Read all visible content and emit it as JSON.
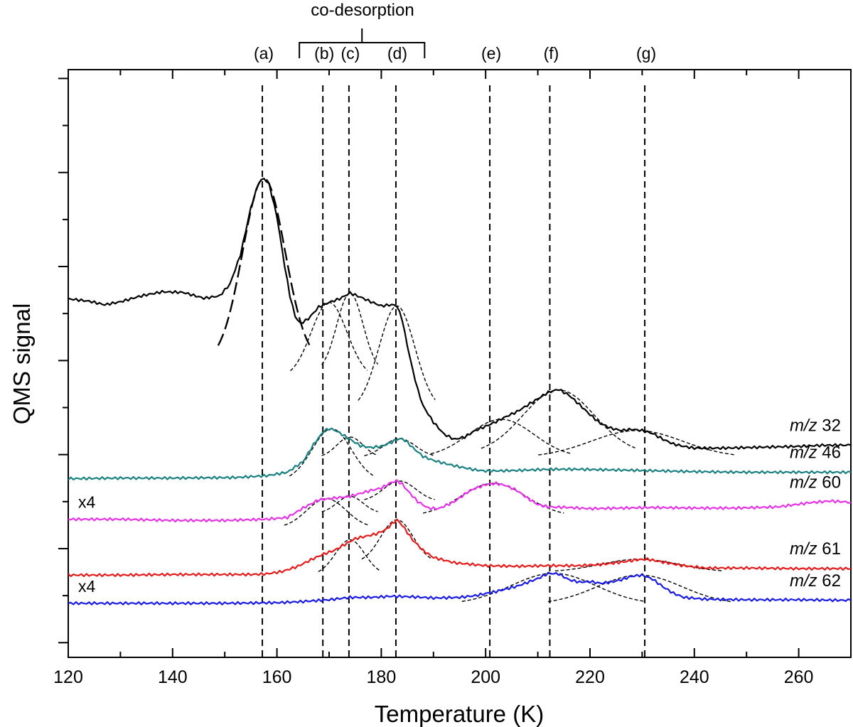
{
  "chart_data": {
    "type": "line",
    "xlabel": "Temperature (K)",
    "ylabel": "QMS signal",
    "xlim": [
      120,
      270
    ],
    "x_ticks": [
      120,
      140,
      160,
      180,
      200,
      220,
      240,
      260
    ],
    "x_tick_labels": [
      "120",
      "140",
      "160",
      "180",
      "200",
      "220",
      "240",
      "260"
    ],
    "y_units": "arbitrary (offset traces)",
    "ylim": [
      0,
      100
    ],
    "peak_markers": [
      {
        "label": "(a)",
        "T": 157.2
      },
      {
        "label": "(b)",
        "T": 168.8
      },
      {
        "label": "(c)",
        "T": 173.8
      },
      {
        "label": "(d)",
        "T": 182.8
      },
      {
        "label": "(e)",
        "T": 200.8
      },
      {
        "label": "(f)",
        "T": 212.3
      },
      {
        "label": "(g)",
        "T": 230.5
      }
    ],
    "codesorption": {
      "label": "co-desorption",
      "from": 164.3,
      "to": 188.3
    },
    "series": [
      {
        "name": "m/z 32",
        "label_italic": "m/z",
        "label_num": "32",
        "multiplier": "",
        "color": "#000000",
        "points": [
          [
            120,
            61
          ],
          [
            124,
            60.6
          ],
          [
            127,
            60
          ],
          [
            130,
            60.5
          ],
          [
            134,
            61.5
          ],
          [
            138,
            62.2
          ],
          [
            142,
            62.1
          ],
          [
            146,
            61.1
          ],
          [
            149,
            61.5
          ],
          [
            151,
            63.5
          ],
          [
            153,
            68.5
          ],
          [
            155,
            76.5
          ],
          [
            156.5,
            80.8
          ],
          [
            157.5,
            81.5
          ],
          [
            158.5,
            80.5
          ],
          [
            160,
            75
          ],
          [
            161.5,
            66.5
          ],
          [
            162.5,
            61.5
          ],
          [
            163.5,
            58
          ],
          [
            164.5,
            56.8
          ],
          [
            166,
            57.6
          ],
          [
            168,
            59.6
          ],
          [
            170,
            60.4
          ],
          [
            172,
            61
          ],
          [
            174,
            62
          ],
          [
            176,
            61.3
          ],
          [
            178,
            60.5
          ],
          [
            180,
            59.8
          ],
          [
            182,
            60
          ],
          [
            183,
            59.8
          ],
          [
            184,
            57.5
          ],
          [
            185,
            53
          ],
          [
            186,
            49
          ],
          [
            187,
            45.5
          ],
          [
            188,
            42.8
          ],
          [
            190,
            40
          ],
          [
            192,
            38
          ],
          [
            194,
            37.1
          ],
          [
            196,
            37.5
          ],
          [
            198,
            38.6
          ],
          [
            200,
            39.3
          ],
          [
            202,
            40.1
          ],
          [
            204,
            41
          ],
          [
            206,
            41.8
          ],
          [
            208,
            42.9
          ],
          [
            210,
            44
          ],
          [
            212,
            45.1
          ],
          [
            214,
            45.6
          ],
          [
            216,
            44.6
          ],
          [
            218,
            43
          ],
          [
            220,
            41.3
          ],
          [
            222,
            39.8
          ],
          [
            224,
            39
          ],
          [
            226,
            38.6
          ],
          [
            228,
            38.8
          ],
          [
            230,
            38.6
          ],
          [
            232,
            38.1
          ],
          [
            234,
            37.1
          ],
          [
            236,
            36.3
          ],
          [
            238,
            35.9
          ],
          [
            240,
            35.6
          ],
          [
            245,
            35.6
          ],
          [
            250,
            35.7
          ],
          [
            255,
            35.8
          ],
          [
            260,
            35.9
          ],
          [
            265,
            36.1
          ],
          [
            270,
            36.1
          ]
        ],
        "fits": [
          {
            "center": 157.5,
            "peak": 81.5,
            "halfwidth": 6.5,
            "base": 50,
            "dash": "long"
          },
          {
            "center": 170.0,
            "peak": 60.4,
            "halfwidth": 5.5,
            "base": 47.5
          },
          {
            "center": 174.0,
            "peak": 62.0,
            "halfwidth": 4.0,
            "base": 48.5
          },
          {
            "center": 183.0,
            "peak": 59.8,
            "halfwidth": 5.5,
            "base": 42.0
          },
          {
            "center": 203.0,
            "peak": 40.5,
            "halfwidth": 10.0,
            "base": 34.0
          },
          {
            "center": 214.0,
            "peak": 45.5,
            "halfwidth": 11.0,
            "base": 34.5
          },
          {
            "center": 229.0,
            "peak": 38.6,
            "halfwidth": 14.0,
            "base": 34.0
          }
        ]
      },
      {
        "name": "m/z 46",
        "label_italic": "m/z",
        "label_num": "46",
        "multiplier": "",
        "color": "#1a8080",
        "points": [
          [
            120,
            30.4
          ],
          [
            130,
            30.5
          ],
          [
            140,
            30.5
          ],
          [
            152,
            30.6
          ],
          [
            158,
            30.9
          ],
          [
            162,
            31.5
          ],
          [
            165,
            33.3
          ],
          [
            167,
            36.2
          ],
          [
            169,
            38.5
          ],
          [
            170,
            38.9
          ],
          [
            171,
            38.7
          ],
          [
            172,
            38.2
          ],
          [
            174,
            37.1
          ],
          [
            176,
            36
          ],
          [
            178,
            35.7
          ],
          [
            180,
            35.9
          ],
          [
            182,
            36.6
          ],
          [
            183,
            37.1
          ],
          [
            184,
            37.2
          ],
          [
            185,
            36.6
          ],
          [
            186,
            35.7
          ],
          [
            188,
            34.2
          ],
          [
            190,
            33.5
          ],
          [
            194,
            32.6
          ],
          [
            198,
            31.9
          ],
          [
            200,
            31.7
          ],
          [
            206,
            31.8
          ],
          [
            212,
            32
          ],
          [
            218,
            32
          ],
          [
            224,
            31.9
          ],
          [
            230,
            31.8
          ],
          [
            240,
            31.6
          ],
          [
            250,
            31.5
          ],
          [
            260,
            31.5
          ],
          [
            270,
            31.5
          ]
        ],
        "fits": [
          {
            "center": 170.5,
            "peak": 38.9,
            "halfwidth": 6.0,
            "base": 30.0
          },
          {
            "center": 174.0,
            "peak": 37.5,
            "halfwidth": 4.0,
            "base": 34.0
          },
          {
            "center": 183.5,
            "peak": 37.2,
            "halfwidth": 5.0,
            "base": 34.0
          }
        ]
      },
      {
        "name": "m/z 60",
        "label_italic": "m/z",
        "label_num": "60",
        "multiplier": "x4",
        "color": "#e633e6",
        "points": [
          [
            120,
            23.5
          ],
          [
            130,
            23.5
          ],
          [
            140,
            23.3
          ],
          [
            150,
            23.3
          ],
          [
            158,
            23.5
          ],
          [
            162,
            23.8
          ],
          [
            165,
            25.4
          ],
          [
            168,
            26.8
          ],
          [
            170,
            27
          ],
          [
            172,
            27.2
          ],
          [
            174,
            27.4
          ],
          [
            176,
            27.9
          ],
          [
            178,
            28.4
          ],
          [
            180,
            28.8
          ],
          [
            182,
            29.8
          ],
          [
            183,
            30
          ],
          [
            184,
            29.5
          ],
          [
            185,
            28.4
          ],
          [
            187,
            26.5
          ],
          [
            189,
            25.4
          ],
          [
            191,
            25.3
          ],
          [
            194,
            26.5
          ],
          [
            197,
            28.4
          ],
          [
            200,
            29.4
          ],
          [
            202,
            29.6
          ],
          [
            204,
            29.2
          ],
          [
            206,
            28.4
          ],
          [
            208,
            27.1
          ],
          [
            210,
            26
          ],
          [
            212,
            25.6
          ],
          [
            216,
            25.5
          ],
          [
            220,
            25.3
          ],
          [
            226,
            25.4
          ],
          [
            232,
            25.5
          ],
          [
            240,
            25.4
          ],
          [
            248,
            25.4
          ],
          [
            256,
            25.6
          ],
          [
            262,
            26.3
          ],
          [
            266,
            26.6
          ],
          [
            270,
            26.4
          ]
        ],
        "fits": [
          {
            "center": 169.5,
            "peak": 27.0,
            "halfwidth": 6.0,
            "base": 22.0
          },
          {
            "center": 174.0,
            "peak": 27.4,
            "halfwidth": 4.0,
            "base": 24.5
          },
          {
            "center": 183.5,
            "peak": 30.0,
            "halfwidth": 5.0,
            "base": 26.5
          },
          {
            "center": 201.5,
            "peak": 29.6,
            "halfwidth": 10.0,
            "base": 24.0
          }
        ]
      },
      {
        "name": "m/z 61",
        "label_italic": "m/z",
        "label_num": "61",
        "multiplier": "",
        "color": "#e61a1a",
        "points": [
          [
            120,
            14
          ],
          [
            130,
            14
          ],
          [
            140,
            14.1
          ],
          [
            150,
            14.1
          ],
          [
            155,
            14.1
          ],
          [
            158,
            14.2
          ],
          [
            161,
            14.6
          ],
          [
            164,
            15.5
          ],
          [
            167,
            16.8
          ],
          [
            169,
            17.6
          ],
          [
            171,
            18.2
          ],
          [
            173,
            19.2
          ],
          [
            175,
            20.2
          ],
          [
            177,
            20.6
          ],
          [
            179,
            21
          ],
          [
            181,
            21.8
          ],
          [
            182,
            22.7
          ],
          [
            183,
            23.4
          ],
          [
            184,
            22.5
          ],
          [
            186,
            20
          ],
          [
            188,
            18.2
          ],
          [
            190,
            17
          ],
          [
            194,
            16.1
          ],
          [
            200,
            15.6
          ],
          [
            206,
            15.5
          ],
          [
            212,
            15.6
          ],
          [
            218,
            15.6
          ],
          [
            222,
            15.8
          ],
          [
            226,
            16.2
          ],
          [
            229,
            16.6
          ],
          [
            231,
            16.7
          ],
          [
            234,
            16.2
          ],
          [
            238,
            15.6
          ],
          [
            242,
            15.2
          ],
          [
            250,
            15.2
          ],
          [
            260,
            15.1
          ],
          [
            270,
            15.1
          ]
        ],
        "fits": [
          {
            "center": 174.0,
            "peak": 20.0,
            "halfwidth": 4.5,
            "base": 14.0
          },
          {
            "center": 183.0,
            "peak": 23.4,
            "halfwidth": 5.0,
            "base": 16.0
          },
          {
            "center": 229.5,
            "peak": 16.7,
            "halfwidth": 12.0,
            "base": 14.5
          }
        ]
      },
      {
        "name": "m/z 62",
        "label_italic": "m/z",
        "label_num": "62",
        "multiplier": "x4",
        "color": "#1a1ae6",
        "points": [
          [
            120,
            9.2
          ],
          [
            130,
            9.2
          ],
          [
            140,
            9.2
          ],
          [
            150,
            9.2
          ],
          [
            160,
            9.3
          ],
          [
            165,
            9.5
          ],
          [
            170,
            9.8
          ],
          [
            174,
            10.2
          ],
          [
            178,
            10.2
          ],
          [
            182,
            10.4
          ],
          [
            186,
            10.3
          ],
          [
            190,
            10.1
          ],
          [
            195,
            10.2
          ],
          [
            198,
            10.5
          ],
          [
            202,
            11.2
          ],
          [
            206,
            12.1
          ],
          [
            210,
            13.4
          ],
          [
            212,
            14.3
          ],
          [
            214,
            14.2
          ],
          [
            216,
            13.2
          ],
          [
            218,
            12.8
          ],
          [
            220,
            12.9
          ],
          [
            222,
            12.6
          ],
          [
            224,
            12.8
          ],
          [
            226,
            13.2
          ],
          [
            228,
            13.8
          ],
          [
            230,
            14
          ],
          [
            232,
            13.3
          ],
          [
            234,
            12
          ],
          [
            236,
            10.9
          ],
          [
            238,
            10.2
          ],
          [
            242,
            9.9
          ],
          [
            250,
            9.8
          ],
          [
            260,
            9.8
          ],
          [
            270,
            9.7
          ]
        ],
        "fits": [
          {
            "center": 213.0,
            "peak": 14.3,
            "halfwidth": 13.0,
            "base": 9.0
          },
          {
            "center": 229.5,
            "peak": 14.0,
            "halfwidth": 13.0,
            "base": 9.0
          }
        ]
      }
    ]
  }
}
